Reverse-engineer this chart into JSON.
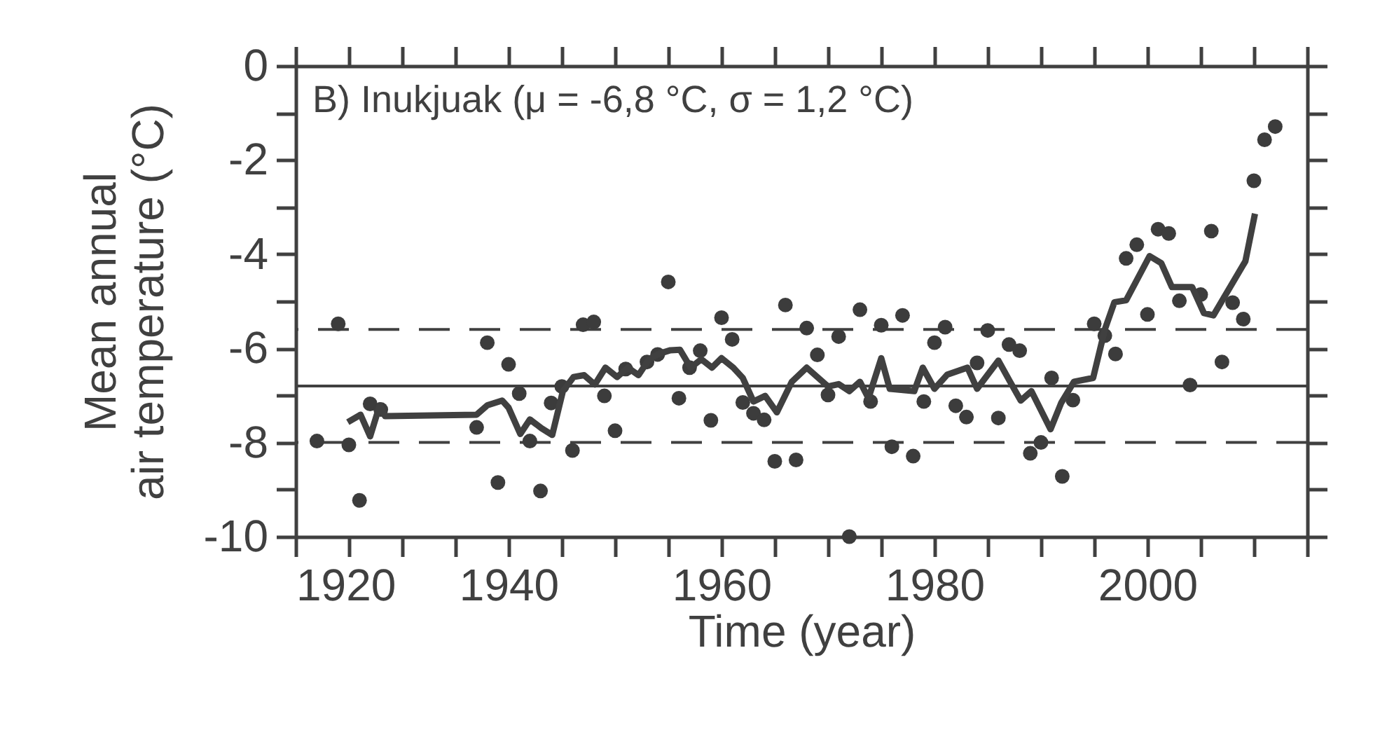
{
  "chart_data": {
    "type": "scatter",
    "xlabel": "Time (year)",
    "ylabel": "Mean annual\nair temperature (°C)",
    "annotations": [
      "B) Inukjuak (μ = -6,8 °C, σ = 1,2 °C)"
    ],
    "xlim": [
      1920,
      2015
    ],
    "ylim": [
      -10,
      0
    ],
    "xticks": [
      1920,
      {
        "value": 1925,
        "label": null
      },
      {
        "value": 1930,
        "label": null
      },
      {
        "value": 1935,
        "label": null
      },
      1940,
      {
        "value": 1945,
        "label": null
      },
      {
        "value": 1950,
        "label": null
      },
      {
        "value": 1955,
        "label": null
      },
      1960,
      {
        "value": 1965,
        "label": null
      },
      {
        "value": 1970,
        "label": null
      },
      {
        "value": 1975,
        "label": null
      },
      1980,
      {
        "value": 1985,
        "label": null
      },
      {
        "value": 1990,
        "label": null
      },
      {
        "value": 1995,
        "label": null
      },
      2000,
      {
        "value": 2005,
        "label": null
      },
      {
        "value": 2010,
        "label": null
      },
      {
        "value": 2015,
        "label": null
      }
    ],
    "yticks": [
      -10,
      {
        "value": -9,
        "label": null
      },
      -8,
      {
        "value": -7,
        "label": null
      },
      -6,
      {
        "value": -5,
        "label": null
      },
      -4,
      {
        "value": -3,
        "label": null
      },
      -2,
      {
        "value": -1,
        "label": null
      },
      0
    ],
    "grid": false,
    "series": [
      {
        "marker": "circle",
        "color": "#3c3c3c",
        "x": [
          1922,
          1924,
          1925,
          1926,
          1927,
          1928,
          1937,
          1938,
          1939,
          1940,
          1941,
          1942,
          1943,
          1944,
          1945,
          1946,
          1947,
          1948,
          1949,
          1950,
          1951,
          1953,
          1954,
          1955,
          1956,
          1957,
          1958,
          1959,
          1960,
          1961,
          1962,
          1963,
          1964,
          1965,
          1966,
          1967,
          1968,
          1969,
          1970,
          1971,
          1972,
          1973,
          1974,
          1975,
          1976,
          1977,
          1978,
          1979,
          1980,
          1981,
          1982,
          1983,
          1984,
          1985,
          1986,
          1987,
          1988,
          1989,
          1990,
          1991,
          1992,
          1993,
          1995,
          1996,
          1997,
          1998,
          1999,
          2000,
          2001,
          2002,
          2003,
          2004,
          2005,
          2006,
          2007,
          2008,
          2009,
          2010,
          2011,
          2012
        ],
        "values": [
          -7.97,
          -5.48,
          -8.05,
          -9.23,
          -7.18,
          -7.3,
          -7.68,
          -5.88,
          -8.85,
          -6.34,
          -6.96,
          -7.97,
          -9.03,
          -7.16,
          -6.81,
          -8.17,
          -5.5,
          -5.44,
          -7.01,
          -7.75,
          -6.44,
          -6.29,
          -6.13,
          -4.59,
          -7.06,
          -6.41,
          -6.05,
          -7.53,
          -5.35,
          -5.81,
          -7.15,
          -7.38,
          -7.52,
          -8.4,
          -5.08,
          -8.37,
          -5.57,
          -6.14,
          -6.99,
          -5.75,
          -10.0,
          -5.18,
          -7.13,
          -5.51,
          -8.09,
          -5.3,
          -8.29,
          -7.13,
          -5.88,
          -5.55,
          -7.22,
          -7.46,
          -6.31,
          -5.62,
          -7.48,
          -5.92,
          -6.05,
          -8.23,
          -8.0,
          -6.63,
          -8.72,
          -7.1,
          -5.48,
          -5.73,
          -6.12,
          -4.09,
          -3.8,
          -5.28,
          -3.47,
          -3.56,
          -4.99,
          -6.78,
          -4.86,
          -3.51,
          -6.29,
          -5.03,
          -5.38,
          -2.44,
          -1.57,
          -1.29
        ]
      },
      {
        "type": "line",
        "marker": "none",
        "line_style": "solid",
        "color": "#404040",
        "x": [
          1924.9,
          1926.1,
          1927,
          1927.9,
          1928.4,
          1937,
          1938,
          1939.4,
          1940,
          1941.1,
          1942,
          1943.1,
          1944.1,
          1945.1,
          1946.1,
          1947.1,
          1948.1,
          1949.1,
          1950.2,
          1951.2,
          1952.2,
          1953.2,
          1954.2,
          1955.2,
          1956.1,
          1957.1,
          1958.1,
          1959.1,
          1960,
          1961.1,
          1962,
          1963,
          1964.1,
          1965.2,
          1966.6,
          1968,
          1970,
          1971,
          1972,
          1973,
          1973.8,
          1975,
          1975.8,
          1978.1,
          1978.9,
          1980,
          1981.2,
          1983.1,
          1984,
          1986,
          1987.1,
          1988.1,
          1989.1,
          1990.9,
          1991.9,
          1993.1,
          1994.9,
          1996,
          1996.9,
          1998,
          2000.2,
          2001.3,
          2002.3,
          2004.2,
          2005.3,
          2006.2,
          2009.2,
          2010.1
        ],
        "values": [
          -7.57,
          -7.41,
          -7.87,
          -7.21,
          -7.44,
          -7.41,
          -7.21,
          -7.11,
          -7.26,
          -7.82,
          -7.51,
          -7.7,
          -7.84,
          -6.91,
          -6.61,
          -6.57,
          -6.77,
          -6.41,
          -6.61,
          -6.41,
          -6.57,
          -6.23,
          -6.11,
          -6.04,
          -6.03,
          -6.41,
          -6.23,
          -6.41,
          -6.21,
          -6.41,
          -6.63,
          -7.13,
          -7.01,
          -7.36,
          -6.71,
          -6.41,
          -6.81,
          -6.76,
          -6.91,
          -6.71,
          -7.06,
          -6.21,
          -6.86,
          -6.91,
          -6.41,
          -6.86,
          -6.56,
          -6.41,
          -6.86,
          -6.26,
          -6.71,
          -7.11,
          -6.91,
          -7.72,
          -7.16,
          -6.71,
          -6.63,
          -5.6,
          -5.02,
          -4.98,
          -4.04,
          -4.19,
          -4.7,
          -4.7,
          -5.25,
          -5.3,
          -4.15,
          -3.14
        ]
      }
    ],
    "ref_lines": [
      {
        "axis": "y",
        "value": -6.8,
        "line_style": "solid",
        "color": "#404040"
      },
      {
        "axis": "y",
        "value": -5.6,
        "line_style": "dashed",
        "color": "#404040"
      },
      {
        "axis": "y",
        "value": -8.0,
        "line_style": "dashed",
        "color": "#404040"
      }
    ]
  }
}
